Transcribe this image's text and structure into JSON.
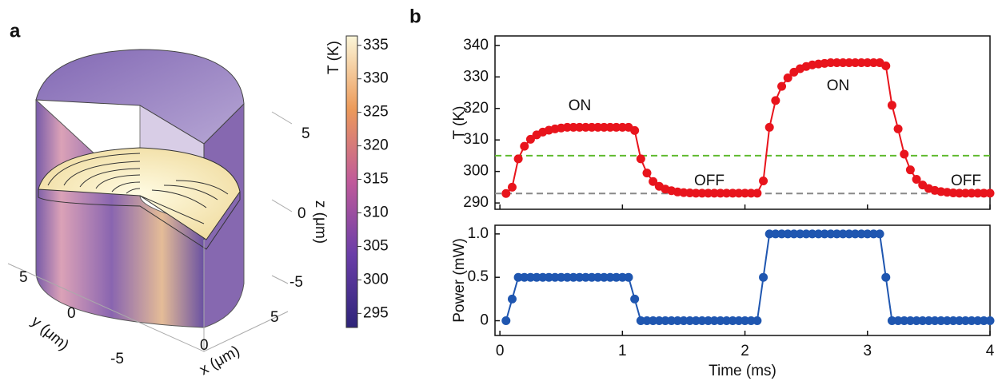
{
  "panel_labels": [
    "a",
    "b"
  ],
  "panel_a": {
    "colorbar": {
      "label": "T (K)",
      "lim": [
        292.9,
        336.4
      ],
      "ticks": [
        295,
        300,
        305,
        310,
        315,
        320,
        325,
        330,
        335
      ]
    },
    "z_axis": {
      "label": "z (μm)",
      "ticks": [
        "5",
        "0",
        "-5"
      ]
    },
    "y_axis": {
      "label": "y (μm)",
      "ticks": [
        "5",
        "0",
        "-5"
      ]
    },
    "x_axis": {
      "label": "x (μm)",
      "ticks": [
        "0",
        "5"
      ]
    }
  },
  "chart_data": [
    {
      "type": "line",
      "ylabel": "T (K)",
      "color": "#e8141c",
      "x": [
        0.05,
        0.1,
        0.15,
        0.2,
        0.25,
        0.3,
        0.35,
        0.4,
        0.45,
        0.5,
        0.55,
        0.6,
        0.65,
        0.7,
        0.75,
        0.8,
        0.85,
        0.9,
        0.95,
        1.0,
        1.05,
        1.1,
        1.15,
        1.2,
        1.25,
        1.3,
        1.35,
        1.4,
        1.45,
        1.5,
        1.55,
        1.6,
        1.65,
        1.7,
        1.75,
        1.8,
        1.85,
        1.9,
        1.95,
        2.0,
        2.05,
        2.1,
        2.15,
        2.2,
        2.25,
        2.3,
        2.35,
        2.4,
        2.45,
        2.5,
        2.55,
        2.6,
        2.65,
        2.7,
        2.75,
        2.8,
        2.85,
        2.9,
        2.95,
        3.0,
        3.05,
        3.1,
        3.15,
        3.2,
        3.25,
        3.3,
        3.35,
        3.4,
        3.45,
        3.5,
        3.55,
        3.6,
        3.65,
        3.7,
        3.75,
        3.8,
        3.85,
        3.9,
        3.95,
        4.0
      ],
      "values": [
        293,
        295,
        304,
        308,
        310.2,
        311.6,
        312.5,
        313.1,
        313.5,
        313.8,
        314,
        314,
        314,
        314,
        314,
        314,
        314,
        314,
        314,
        314,
        314,
        313,
        304,
        299.5,
        296.8,
        295.3,
        294.4,
        293.9,
        293.5,
        293.3,
        293.2,
        293.1,
        293.1,
        293.1,
        293.1,
        293.1,
        293.1,
        293.1,
        293.1,
        293.1,
        293.1,
        293.1,
        297,
        314,
        322.5,
        327,
        329.7,
        331.5,
        332.6,
        333.3,
        333.8,
        334.1,
        334.3,
        334.5,
        334.5,
        334.5,
        334.5,
        334.5,
        334.5,
        334.5,
        334.5,
        334.5,
        333.5,
        321,
        313.5,
        305.5,
        300.5,
        297.5,
        295.7,
        294.6,
        294,
        293.6,
        293.4,
        293.2,
        293.1,
        293.1,
        293.1,
        293.1,
        293.1,
        293.1
      ],
      "xlim": [
        -0.04,
        4
      ],
      "xticks": [
        0,
        1,
        2,
        3,
        4
      ],
      "ylim": [
        288,
        343
      ],
      "yticks": [
        290,
        300,
        310,
        320,
        330,
        340
      ],
      "reference_lines": [
        {
          "value": 305,
          "color": "#5fba2e"
        },
        {
          "value": 293,
          "color": "#888888"
        }
      ],
      "annotations": [
        "ON",
        "OFF",
        "ON",
        "OFF"
      ]
    },
    {
      "type": "line",
      "ylabel": "Power (mW)",
      "xlabel": "Time (ms)",
      "color": "#1f56b0",
      "x": [
        0.05,
        0.1,
        0.15,
        0.2,
        0.25,
        0.3,
        0.35,
        0.4,
        0.45,
        0.5,
        0.55,
        0.6,
        0.65,
        0.7,
        0.75,
        0.8,
        0.85,
        0.9,
        0.95,
        1.0,
        1.05,
        1.1,
        1.15,
        1.2,
        1.25,
        1.3,
        1.35,
        1.4,
        1.45,
        1.5,
        1.55,
        1.6,
        1.65,
        1.7,
        1.75,
        1.8,
        1.85,
        1.9,
        1.95,
        2.0,
        2.05,
        2.1,
        2.15,
        2.2,
        2.25,
        2.3,
        2.35,
        2.4,
        2.45,
        2.5,
        2.55,
        2.6,
        2.65,
        2.7,
        2.75,
        2.8,
        2.85,
        2.9,
        2.95,
        3.0,
        3.05,
        3.1,
        3.15,
        3.2,
        3.25,
        3.3,
        3.35,
        3.4,
        3.45,
        3.5,
        3.55,
        3.6,
        3.65,
        3.7,
        3.75,
        3.8,
        3.85,
        3.9,
        3.95,
        4.0
      ],
      "values": [
        0,
        0.25,
        0.5,
        0.5,
        0.5,
        0.5,
        0.5,
        0.5,
        0.5,
        0.5,
        0.5,
        0.5,
        0.5,
        0.5,
        0.5,
        0.5,
        0.5,
        0.5,
        0.5,
        0.5,
        0.5,
        0.25,
        0,
        0,
        0,
        0,
        0,
        0,
        0,
        0,
        0,
        0,
        0,
        0,
        0,
        0,
        0,
        0,
        0,
        0,
        0,
        0,
        0.5,
        1,
        1,
        1,
        1,
        1,
        1,
        1,
        1,
        1,
        1,
        1,
        1,
        1,
        1,
        1,
        1,
        1,
        1,
        1,
        0.5,
        0,
        0,
        0,
        0,
        0,
        0,
        0,
        0,
        0,
        0,
        0,
        0,
        0,
        0,
        0,
        0,
        0
      ],
      "xlim": [
        -0.04,
        4
      ],
      "xticks": [
        0,
        1,
        2,
        3,
        4
      ],
      "ylim": [
        -0.17,
        1.1
      ],
      "yticks": [
        0,
        0.5,
        {
          "value": 1,
          "label": "1.0"
        }
      ]
    }
  ]
}
